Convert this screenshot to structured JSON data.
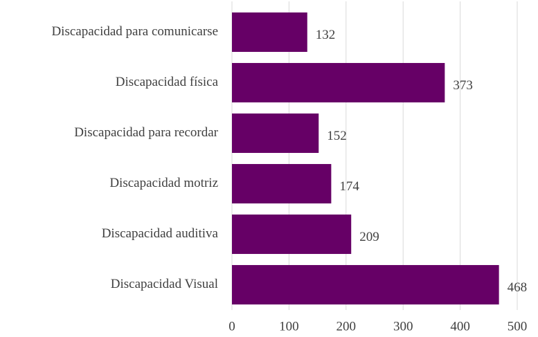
{
  "chart_data": {
    "type": "bar",
    "orientation": "horizontal",
    "categories": [
      "Discapacidad para comunicarse",
      "Discapacidad física",
      "Discapacidad para recordar",
      "Discapacidad motriz",
      "Discapacidad auditiva",
      "Discapacidad Visual"
    ],
    "values": [
      132,
      373,
      152,
      174,
      209,
      468
    ],
    "color": "#660066",
    "xlim": [
      0,
      500
    ],
    "xticks": [
      0,
      100,
      200,
      300,
      400,
      500
    ],
    "grid": true
  }
}
